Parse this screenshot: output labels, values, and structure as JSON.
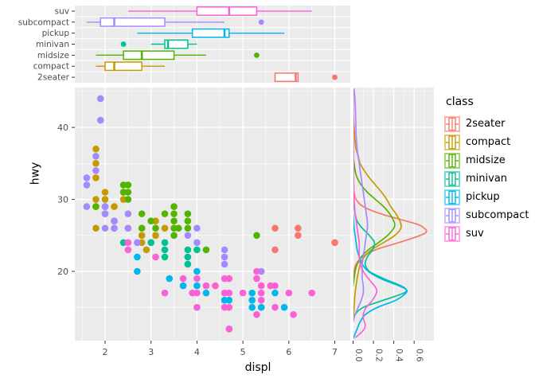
{
  "legend": {
    "title": "class"
  },
  "colors": {
    "panel_bg": "#EBEBEB",
    "grid_major": "#FFFFFF",
    "grid_minor": "#F7F7F7",
    "tick_text": "#4D4D4D",
    "axis_title_text": "#000000"
  },
  "chart_data": {
    "type": "scatter",
    "description": "Scatter of displ vs hwy with marginal boxplots (top) and marginal density curves (right), grouped by vehicle class",
    "x_axis": {
      "label": "displ",
      "ticks": [
        2,
        3,
        4,
        5,
        6,
        7
      ],
      "minor_ticks": [
        1.5,
        2.5,
        3.5,
        4.5,
        5.5,
        6.5
      ],
      "range": [
        1.34,
        7.34
      ]
    },
    "y_axis": {
      "label": "hwy",
      "ticks": [
        20,
        30,
        40
      ],
      "minor_ticks": [
        15,
        25,
        35,
        45
      ],
      "range": [
        10.4,
        45.5
      ]
    },
    "density_axis": {
      "tick_labels": [
        "0.0",
        "0.2",
        "0.4",
        "0.6"
      ],
      "ticks": [
        0.0,
        0.2,
        0.4,
        0.6
      ],
      "minor_ticks": [
        0.1,
        0.3,
        0.5,
        0.7
      ],
      "range": [
        0,
        0.79
      ]
    },
    "classes": [
      {
        "name": "2seater",
        "color": "#F8766D"
      },
      {
        "name": "compact",
        "color": "#C49A00"
      },
      {
        "name": "midsize",
        "color": "#53B400"
      },
      {
        "name": "minivan",
        "color": "#00C094"
      },
      {
        "name": "pickup",
        "color": "#00B6EB"
      },
      {
        "name": "subcompact",
        "color": "#A58AFF"
      },
      {
        "name": "suv",
        "color": "#FB61D7"
      }
    ],
    "boxplot_rows_top_to_bottom": [
      "suv",
      "subcompact",
      "pickup",
      "minivan",
      "midsize",
      "compact",
      "2seater"
    ],
    "boxplots": {
      "suv": {
        "lo": 2.5,
        "q1": 4.0,
        "med": 4.7,
        "q3": 5.3,
        "hi": 6.5,
        "outliers": []
      },
      "subcompact": {
        "lo": 1.6,
        "q1": 1.9,
        "med": 2.2,
        "q3": 3.3,
        "hi": 4.6,
        "outliers": [
          5.4
        ]
      },
      "pickup": {
        "lo": 2.7,
        "q1": 3.9,
        "med": 4.6,
        "q3": 4.7,
        "hi": 5.9,
        "outliers": []
      },
      "minivan": {
        "lo": 3.0,
        "q1": 3.3,
        "med": 3.37,
        "q3": 3.8,
        "hi": 4.0,
        "outliers": [
          2.4
        ]
      },
      "midsize": {
        "lo": 1.8,
        "q1": 2.4,
        "med": 2.8,
        "q3": 3.5,
        "hi": 4.2,
        "outliers": [
          5.3
        ]
      },
      "compact": {
        "lo": 1.8,
        "q1": 2.0,
        "med": 2.2,
        "q3": 2.8,
        "hi": 3.3,
        "outliers": []
      },
      "2seater": {
        "lo": 5.7,
        "q1": 5.7,
        "med": 6.15,
        "q3": 6.2,
        "hi": 6.2,
        "outliers": [
          7.0
        ]
      }
    },
    "points": {
      "2seater": [
        [
          5.7,
          26
        ],
        [
          5.7,
          23
        ],
        [
          6.2,
          26
        ],
        [
          6.2,
          25
        ],
        [
          7.0,
          24
        ]
      ],
      "compact": [
        [
          1.8,
          37
        ],
        [
          1.8,
          35
        ],
        [
          1.8,
          33
        ],
        [
          1.8,
          30
        ],
        [
          1.8,
          29
        ],
        [
          1.8,
          26
        ],
        [
          2.0,
          31
        ],
        [
          2.0,
          30
        ],
        [
          2.0,
          28
        ],
        [
          2.2,
          29
        ],
        [
          2.2,
          27
        ],
        [
          2.2,
          26
        ],
        [
          2.4,
          31
        ],
        [
          2.4,
          30
        ],
        [
          2.5,
          26
        ],
        [
          2.8,
          26
        ],
        [
          2.8,
          25
        ],
        [
          2.8,
          24
        ],
        [
          2.9,
          23
        ],
        [
          3.1,
          27
        ],
        [
          3.1,
          25
        ],
        [
          3.3,
          26
        ]
      ],
      "midsize": [
        [
          1.8,
          29
        ],
        [
          2.0,
          29
        ],
        [
          2.0,
          28
        ],
        [
          2.4,
          32
        ],
        [
          2.4,
          31
        ],
        [
          2.5,
          32
        ],
        [
          2.5,
          31
        ],
        [
          2.5,
          30
        ],
        [
          2.8,
          28
        ],
        [
          2.8,
          26
        ],
        [
          3.0,
          27
        ],
        [
          3.0,
          24
        ],
        [
          3.1,
          26
        ],
        [
          3.3,
          28
        ],
        [
          3.5,
          29
        ],
        [
          3.5,
          28
        ],
        [
          3.5,
          27
        ],
        [
          3.5,
          26
        ],
        [
          3.5,
          25
        ],
        [
          3.6,
          26
        ],
        [
          3.8,
          28
        ],
        [
          3.8,
          27
        ],
        [
          3.8,
          26
        ],
        [
          4.2,
          23
        ],
        [
          5.3,
          25
        ]
      ],
      "minivan": [
        [
          2.4,
          24
        ],
        [
          3.0,
          24
        ],
        [
          3.3,
          24
        ],
        [
          3.3,
          23
        ],
        [
          3.3,
          22
        ],
        [
          3.8,
          23
        ],
        [
          3.8,
          22
        ],
        [
          3.8,
          21
        ],
        [
          4.0,
          23
        ]
      ],
      "pickup": [
        [
          2.7,
          22
        ],
        [
          2.7,
          20
        ],
        [
          3.4,
          19
        ],
        [
          3.7,
          18
        ],
        [
          4.0,
          20
        ],
        [
          4.0,
          18
        ],
        [
          4.2,
          17
        ],
        [
          4.6,
          16
        ],
        [
          4.7,
          16
        ],
        [
          4.7,
          12
        ],
        [
          5.2,
          17
        ],
        [
          5.2,
          16
        ],
        [
          5.2,
          15
        ],
        [
          5.4,
          15
        ],
        [
          5.7,
          17
        ],
        [
          5.9,
          15
        ]
      ],
      "subcompact": [
        [
          1.6,
          33
        ],
        [
          1.6,
          32
        ],
        [
          1.6,
          29
        ],
        [
          1.8,
          36
        ],
        [
          1.8,
          34
        ],
        [
          1.9,
          44
        ],
        [
          1.9,
          41
        ],
        [
          2.0,
          29
        ],
        [
          2.0,
          28
        ],
        [
          2.0,
          26
        ],
        [
          2.2,
          27
        ],
        [
          2.2,
          26
        ],
        [
          2.5,
          28
        ],
        [
          2.5,
          26
        ],
        [
          2.7,
          24
        ],
        [
          3.8,
          25
        ],
        [
          4.0,
          26
        ],
        [
          4.0,
          24
        ],
        [
          4.6,
          23
        ],
        [
          4.6,
          22
        ],
        [
          4.6,
          21
        ],
        [
          5.4,
          20
        ]
      ],
      "suv": [
        [
          2.5,
          24
        ],
        [
          2.5,
          23
        ],
        [
          3.1,
          22
        ],
        [
          3.3,
          17
        ],
        [
          3.7,
          19
        ],
        [
          3.9,
          17
        ],
        [
          4.0,
          19
        ],
        [
          4.0,
          17
        ],
        [
          4.0,
          15
        ],
        [
          4.2,
          18
        ],
        [
          4.4,
          18
        ],
        [
          4.6,
          19
        ],
        [
          4.6,
          17
        ],
        [
          4.6,
          15
        ],
        [
          4.7,
          19
        ],
        [
          4.7,
          17
        ],
        [
          4.7,
          15
        ],
        [
          4.7,
          12
        ],
        [
          5.0,
          17
        ],
        [
          5.3,
          20
        ],
        [
          5.3,
          19
        ],
        [
          5.3,
          14
        ],
        [
          5.4,
          18
        ],
        [
          5.4,
          17
        ],
        [
          5.4,
          16
        ],
        [
          5.6,
          18
        ],
        [
          5.7,
          18
        ],
        [
          5.7,
          15
        ],
        [
          6.0,
          17
        ],
        [
          6.1,
          14
        ],
        [
          6.5,
          17
        ]
      ]
    },
    "densities": {
      "2seater": [
        [
          19,
          0
        ],
        [
          20,
          0.01
        ],
        [
          21,
          0.03
        ],
        [
          22,
          0.09
        ],
        [
          23,
          0.22
        ],
        [
          24,
          0.45
        ],
        [
          25,
          0.66
        ],
        [
          25.5,
          0.72
        ],
        [
          26,
          0.7
        ],
        [
          26.5,
          0.64
        ],
        [
          27,
          0.52
        ],
        [
          28,
          0.27
        ],
        [
          29,
          0.1
        ],
        [
          30,
          0.03
        ],
        [
          31,
          0.01
        ],
        [
          32,
          0
        ]
      ],
      "compact": [
        [
          13,
          0
        ],
        [
          15,
          0.01
        ],
        [
          17,
          0.02
        ],
        [
          19,
          0.04
        ],
        [
          21,
          0.07
        ],
        [
          22,
          0.11
        ],
        [
          23,
          0.18
        ],
        [
          24,
          0.3
        ],
        [
          25,
          0.41
        ],
        [
          26,
          0.47
        ],
        [
          27,
          0.46
        ],
        [
          28,
          0.42
        ],
        [
          29,
          0.37
        ],
        [
          30,
          0.33
        ],
        [
          31,
          0.28
        ],
        [
          32,
          0.22
        ],
        [
          33,
          0.16
        ],
        [
          34,
          0.11
        ],
        [
          35,
          0.07
        ],
        [
          36,
          0.05
        ],
        [
          37,
          0.03
        ],
        [
          38,
          0.02
        ],
        [
          40,
          0.01
        ],
        [
          42,
          0
        ]
      ],
      "midsize": [
        [
          18,
          0
        ],
        [
          20,
          0.02
        ],
        [
          21,
          0.04
        ],
        [
          22,
          0.08
        ],
        [
          23,
          0.15
        ],
        [
          24,
          0.25
        ],
        [
          25,
          0.34
        ],
        [
          26,
          0.4
        ],
        [
          26.5,
          0.41
        ],
        [
          27,
          0.4
        ],
        [
          28,
          0.36
        ],
        [
          29,
          0.3
        ],
        [
          30,
          0.22
        ],
        [
          31,
          0.14
        ],
        [
          32,
          0.08
        ],
        [
          33,
          0.04
        ],
        [
          34,
          0.02
        ],
        [
          35,
          0.01
        ],
        [
          36,
          0
        ]
      ],
      "minivan": [
        [
          13,
          0
        ],
        [
          14,
          0.02
        ],
        [
          15,
          0.1
        ],
        [
          16,
          0.3
        ],
        [
          17,
          0.5
        ],
        [
          17.5,
          0.52
        ],
        [
          18,
          0.47
        ],
        [
          19,
          0.3
        ],
        [
          20,
          0.16
        ],
        [
          21,
          0.12
        ],
        [
          22,
          0.14
        ],
        [
          23,
          0.19
        ],
        [
          24,
          0.21
        ],
        [
          25,
          0.16
        ],
        [
          26,
          0.09
        ],
        [
          27,
          0.04
        ],
        [
          28,
          0.02
        ],
        [
          29,
          0.01
        ],
        [
          30,
          0
        ]
      ],
      "pickup": [
        [
          10.6,
          0
        ],
        [
          11,
          0.01
        ],
        [
          12,
          0.04
        ],
        [
          13,
          0.07
        ],
        [
          14,
          0.12
        ],
        [
          15,
          0.24
        ],
        [
          16,
          0.42
        ],
        [
          17,
          0.52
        ],
        [
          17.5,
          0.52
        ],
        [
          18,
          0.45
        ],
        [
          19,
          0.27
        ],
        [
          20,
          0.15
        ],
        [
          21,
          0.09
        ],
        [
          22,
          0.06
        ],
        [
          23,
          0.04
        ],
        [
          24,
          0.03
        ],
        [
          25,
          0.02
        ],
        [
          26,
          0.01
        ],
        [
          28,
          0
        ]
      ],
      "subcompact": [
        [
          13,
          0
        ],
        [
          14,
          0.02
        ],
        [
          15,
          0.05
        ],
        [
          16,
          0.08
        ],
        [
          17,
          0.1
        ],
        [
          18,
          0.1
        ],
        [
          19,
          0.09
        ],
        [
          20,
          0.09
        ],
        [
          21,
          0.09
        ],
        [
          22,
          0.1
        ],
        [
          23,
          0.11
        ],
        [
          24,
          0.12
        ],
        [
          25,
          0.13
        ],
        [
          26,
          0.14
        ],
        [
          27,
          0.14
        ],
        [
          28,
          0.13
        ],
        [
          29,
          0.12
        ],
        [
          30,
          0.11
        ],
        [
          31,
          0.1
        ],
        [
          32,
          0.09
        ],
        [
          33,
          0.08
        ],
        [
          34,
          0.07
        ],
        [
          35,
          0.06
        ],
        [
          36,
          0.05
        ],
        [
          37,
          0.04
        ],
        [
          38,
          0.035
        ],
        [
          39,
          0.03
        ],
        [
          40,
          0.028
        ],
        [
          41,
          0.026
        ],
        [
          42,
          0.024
        ],
        [
          43,
          0.022
        ],
        [
          44,
          0.018
        ],
        [
          45,
          0.012
        ],
        [
          45.4,
          0.008
        ]
      ],
      "suv": [
        [
          10.8,
          0.02
        ],
        [
          11,
          0.04
        ],
        [
          11.5,
          0.08
        ],
        [
          12,
          0.11
        ],
        [
          12.5,
          0.12
        ],
        [
          13,
          0.11
        ],
        [
          13.5,
          0.1
        ],
        [
          14,
          0.1
        ],
        [
          14.5,
          0.11
        ],
        [
          15,
          0.13
        ],
        [
          16,
          0.19
        ],
        [
          17,
          0.23
        ],
        [
          17.5,
          0.23
        ],
        [
          18,
          0.21
        ],
        [
          19,
          0.15
        ],
        [
          20,
          0.1
        ],
        [
          21,
          0.07
        ],
        [
          22,
          0.06
        ],
        [
          23,
          0.06
        ],
        [
          24,
          0.06
        ],
        [
          25,
          0.05
        ],
        [
          26,
          0.04
        ],
        [
          27,
          0.03
        ],
        [
          28,
          0.02
        ],
        [
          30,
          0.01
        ],
        [
          33,
          0.005
        ],
        [
          36,
          0.004
        ],
        [
          40,
          0.003
        ],
        [
          45,
          0.002
        ]
      ]
    }
  }
}
